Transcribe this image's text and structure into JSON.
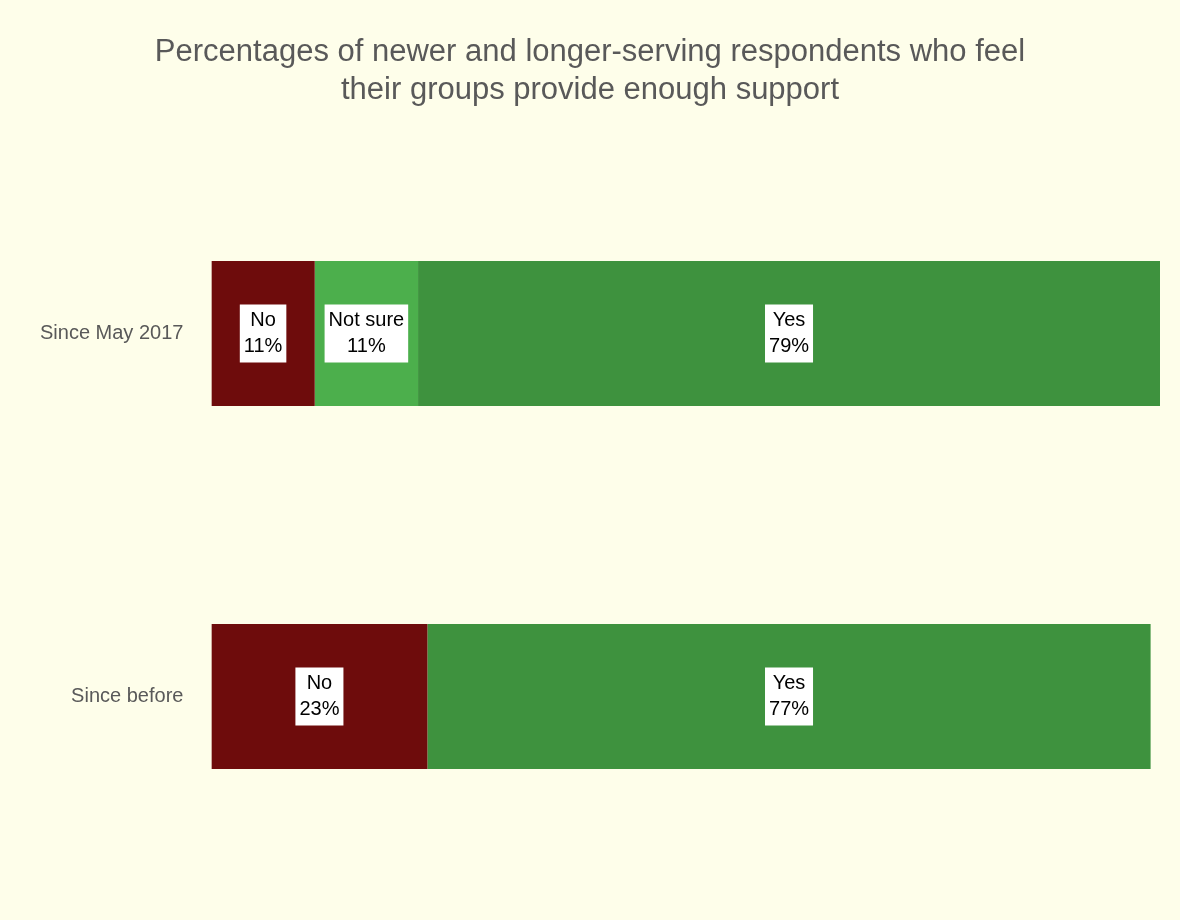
{
  "chart_data": {
    "type": "bar",
    "orientation": "horizontal",
    "stacked": true,
    "title": "Percentages of newer and longer-serving respondents who feel their groups provide enough support",
    "categories": [
      "Since May 2017",
      "Since before"
    ],
    "tick_labels": "y",
    "series": [
      {
        "name": "No",
        "color": "#6e0c0c",
        "values": [
          11,
          23
        ],
        "value_labels": [
          "11%",
          "23%"
        ]
      },
      {
        "name": "Not sure",
        "color": "#4caf4c",
        "values": [
          11,
          null
        ],
        "value_labels": [
          "11%",
          null
        ]
      },
      {
        "name": "Yes",
        "color": "#3e923e",
        "values": [
          79,
          77
        ],
        "value_labels": [
          "79%",
          "77%"
        ]
      }
    ]
  }
}
